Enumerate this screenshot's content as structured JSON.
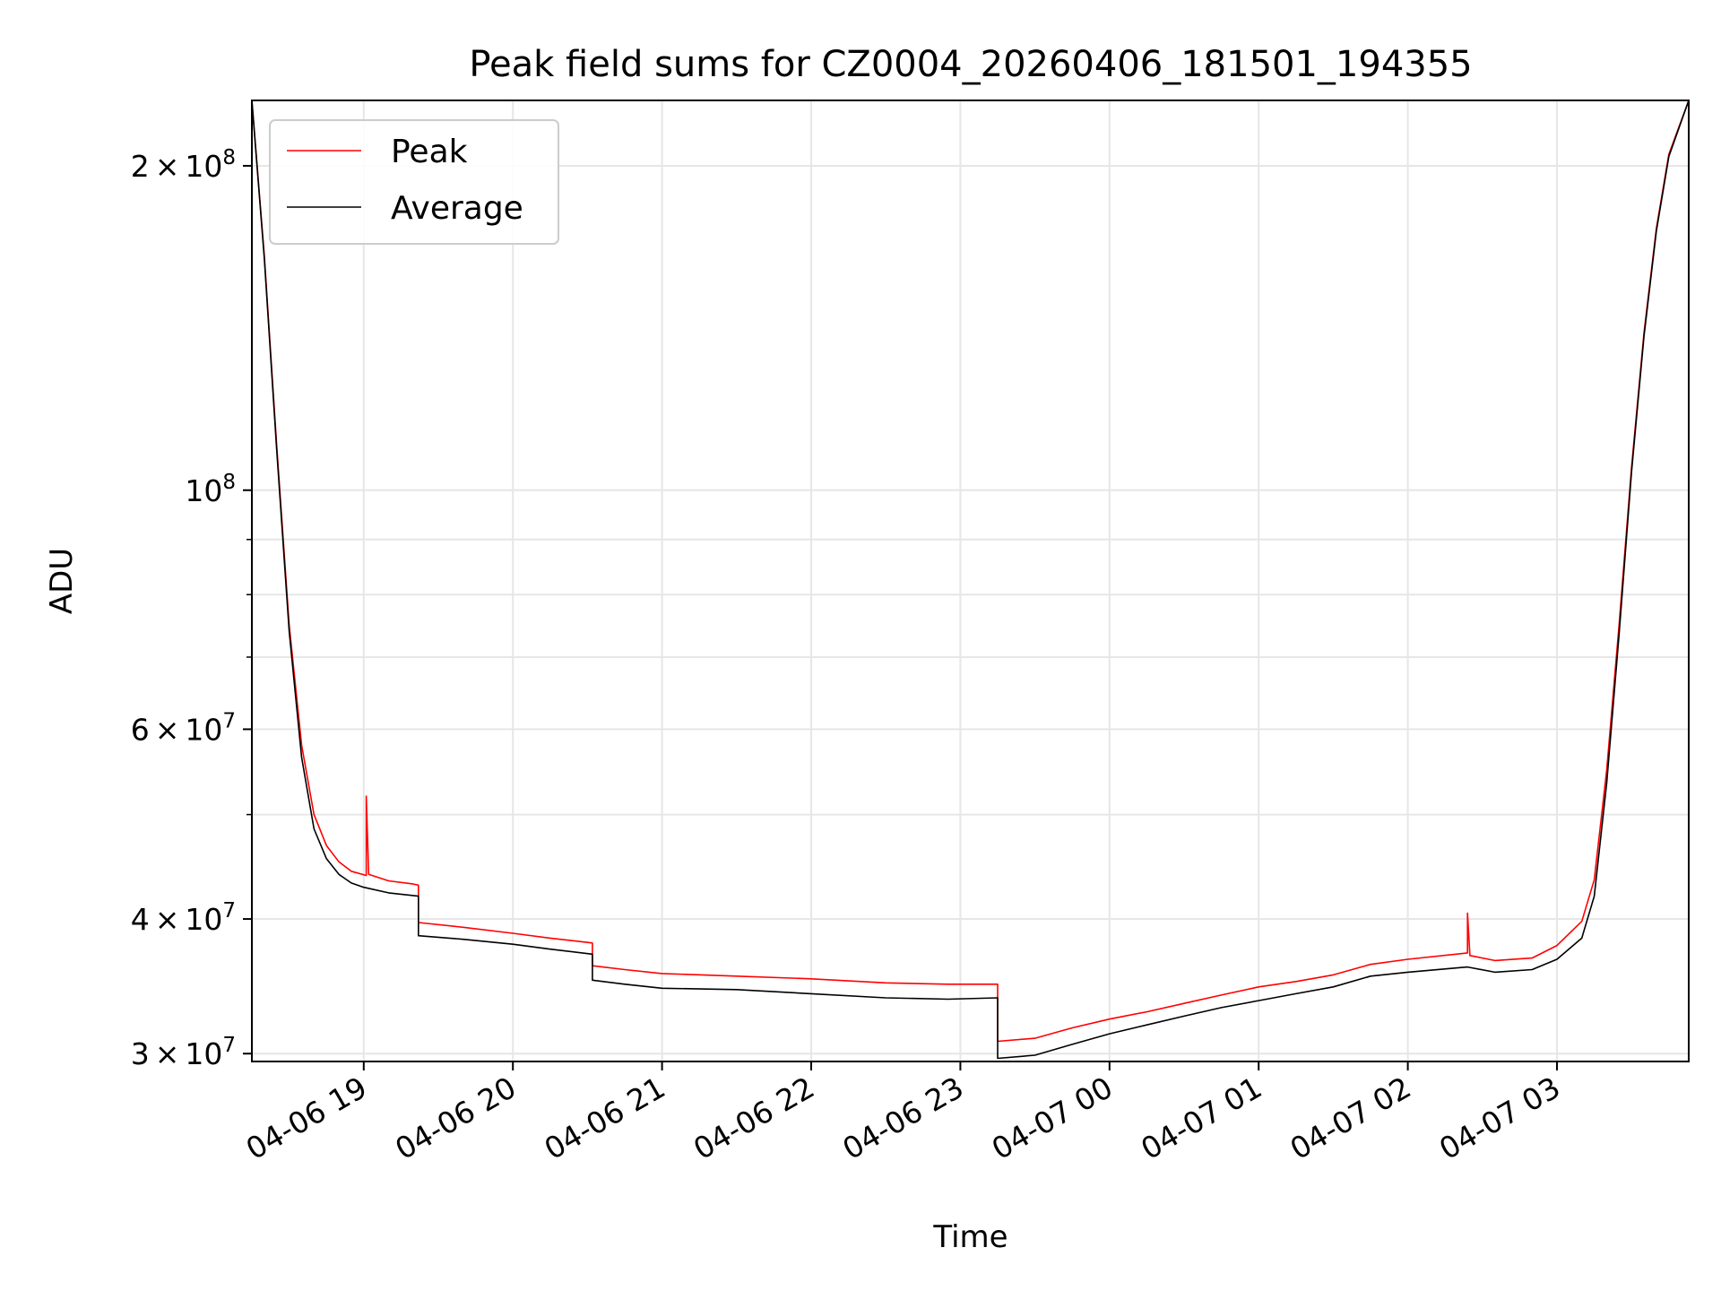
{
  "chart_data": {
    "type": "line",
    "title": "Peak field sums for CZ0004_20260406_181501_194355",
    "xlabel": "Time",
    "ylabel": "ADU",
    "yscale": "log",
    "ylim": [
      29500000,
      230000000
    ],
    "xlim": [
      "2026-04-06 18:15",
      "2026-04-07 03:53"
    ],
    "grid": true,
    "legend_position": "top-left",
    "x_ticks": [
      {
        "t": "2026-04-06 19:00",
        "label": "04-06 19"
      },
      {
        "t": "2026-04-06 20:00",
        "label": "04-06 20"
      },
      {
        "t": "2026-04-06 21:00",
        "label": "04-06 21"
      },
      {
        "t": "2026-04-06 22:00",
        "label": "04-06 22"
      },
      {
        "t": "2026-04-06 23:00",
        "label": "04-06 23"
      },
      {
        "t": "2026-04-07 00:00",
        "label": "04-07 00"
      },
      {
        "t": "2026-04-07 01:00",
        "label": "04-07 01"
      },
      {
        "t": "2026-04-07 02:00",
        "label": "04-07 02"
      },
      {
        "t": "2026-04-07 03:00",
        "label": "04-07 03"
      }
    ],
    "y_ticks": [
      {
        "v": 30000000,
        "mant": "3",
        "exp": "7"
      },
      {
        "v": 40000000,
        "mant": "4",
        "exp": "7"
      },
      {
        "v": 60000000,
        "mant": "6",
        "exp": "7"
      },
      {
        "v": 100000000,
        "mant": "",
        "exp": "8"
      },
      {
        "v": 200000000,
        "mant": "2",
        "exp": "8"
      }
    ],
    "y_minor": [
      50000000,
      70000000,
      80000000,
      90000000
    ],
    "series": [
      {
        "name": "Peak",
        "color": "#ff0000",
        "points": [
          [
            "2026-04-06 18:15",
            230000000
          ],
          [
            "2026-04-06 18:20",
            165000000
          ],
          [
            "2026-04-06 18:25",
            110000000
          ],
          [
            "2026-04-06 18:30",
            75000000
          ],
          [
            "2026-04-06 18:35",
            58000000
          ],
          [
            "2026-04-06 18:40",
            50000000
          ],
          [
            "2026-04-06 18:45",
            46800000
          ],
          [
            "2026-04-06 18:50",
            45200000
          ],
          [
            "2026-04-06 18:55",
            44300000
          ],
          [
            "2026-04-06 19:01",
            43900000
          ],
          [
            "2026-04-06 19:01",
            52000000
          ],
          [
            "2026-04-06 19:02",
            44000000
          ],
          [
            "2026-04-06 19:10",
            43400000
          ],
          [
            "2026-04-06 19:20",
            43100000
          ],
          [
            "2026-04-06 19:22",
            43000000
          ],
          [
            "2026-04-06 19:22",
            39700000
          ],
          [
            "2026-04-06 19:40",
            39300000
          ],
          [
            "2026-04-06 20:00",
            38800000
          ],
          [
            "2026-04-06 20:15",
            38400000
          ],
          [
            "2026-04-06 20:32",
            38000000
          ],
          [
            "2026-04-06 20:32",
            36200000
          ],
          [
            "2026-04-06 20:45",
            35900000
          ],
          [
            "2026-04-06 21:00",
            35600000
          ],
          [
            "2026-04-06 21:30",
            35400000
          ],
          [
            "2026-04-06 22:00",
            35200000
          ],
          [
            "2026-04-06 22:30",
            34900000
          ],
          [
            "2026-04-06 22:55",
            34800000
          ],
          [
            "2026-04-06 23:15",
            34800000
          ],
          [
            "2026-04-06 23:15",
            30800000
          ],
          [
            "2026-04-06 23:30",
            31000000
          ],
          [
            "2026-04-06 23:45",
            31700000
          ],
          [
            "2026-04-07 00:00",
            32300000
          ],
          [
            "2026-04-07 00:15",
            32800000
          ],
          [
            "2026-04-07 00:30",
            33400000
          ],
          [
            "2026-04-07 00:45",
            34000000
          ],
          [
            "2026-04-07 01:00",
            34600000
          ],
          [
            "2026-04-07 01:15",
            35000000
          ],
          [
            "2026-04-07 01:30",
            35500000
          ],
          [
            "2026-04-07 01:45",
            36300000
          ],
          [
            "2026-04-07 02:00",
            36700000
          ],
          [
            "2026-04-07 02:24",
            37200000
          ],
          [
            "2026-04-07 02:24",
            40500000
          ],
          [
            "2026-04-07 02:25",
            37000000
          ],
          [
            "2026-04-07 02:35",
            36600000
          ],
          [
            "2026-04-07 02:50",
            36800000
          ],
          [
            "2026-04-07 03:00",
            37800000
          ],
          [
            "2026-04-07 03:10",
            39800000
          ],
          [
            "2026-04-07 03:15",
            43500000
          ],
          [
            "2026-04-07 03:20",
            55000000
          ],
          [
            "2026-04-07 03:25",
            75000000
          ],
          [
            "2026-04-07 03:30",
            105000000
          ],
          [
            "2026-04-07 03:35",
            140000000
          ],
          [
            "2026-04-07 03:40",
            175000000
          ],
          [
            "2026-04-07 03:45",
            205000000
          ],
          [
            "2026-04-07 03:53",
            230000000
          ]
        ]
      },
      {
        "name": "Average",
        "color": "#000000",
        "points": [
          [
            "2026-04-06 18:15",
            230000000
          ],
          [
            "2026-04-06 18:20",
            164000000
          ],
          [
            "2026-04-06 18:25",
            109000000
          ],
          [
            "2026-04-06 18:30",
            74000000
          ],
          [
            "2026-04-06 18:35",
            56500000
          ],
          [
            "2026-04-06 18:40",
            48500000
          ],
          [
            "2026-04-06 18:45",
            45500000
          ],
          [
            "2026-04-06 18:50",
            44000000
          ],
          [
            "2026-04-06 18:55",
            43200000
          ],
          [
            "2026-04-06 19:00",
            42800000
          ],
          [
            "2026-04-06 19:10",
            42300000
          ],
          [
            "2026-04-06 19:22",
            42000000
          ],
          [
            "2026-04-06 19:22",
            38600000
          ],
          [
            "2026-04-06 19:40",
            38300000
          ],
          [
            "2026-04-06 20:00",
            37900000
          ],
          [
            "2026-04-06 20:15",
            37500000
          ],
          [
            "2026-04-06 20:32",
            37100000
          ],
          [
            "2026-04-06 20:32",
            35100000
          ],
          [
            "2026-04-06 20:45",
            34800000
          ],
          [
            "2026-04-06 21:00",
            34500000
          ],
          [
            "2026-04-06 21:30",
            34400000
          ],
          [
            "2026-04-06 22:00",
            34100000
          ],
          [
            "2026-04-06 22:30",
            33800000
          ],
          [
            "2026-04-06 22:55",
            33700000
          ],
          [
            "2026-04-06 23:15",
            33800000
          ],
          [
            "2026-04-06 23:15",
            29700000
          ],
          [
            "2026-04-06 23:30",
            29900000
          ],
          [
            "2026-04-06 23:45",
            30600000
          ],
          [
            "2026-04-07 00:00",
            31300000
          ],
          [
            "2026-04-07 00:15",
            31900000
          ],
          [
            "2026-04-07 00:30",
            32500000
          ],
          [
            "2026-04-07 00:45",
            33100000
          ],
          [
            "2026-04-07 01:00",
            33600000
          ],
          [
            "2026-04-07 01:15",
            34100000
          ],
          [
            "2026-04-07 01:30",
            34600000
          ],
          [
            "2026-04-07 01:45",
            35400000
          ],
          [
            "2026-04-07 02:00",
            35700000
          ],
          [
            "2026-04-07 02:24",
            36100000
          ],
          [
            "2026-04-07 02:35",
            35700000
          ],
          [
            "2026-04-07 02:50",
            35900000
          ],
          [
            "2026-04-07 03:00",
            36700000
          ],
          [
            "2026-04-07 03:10",
            38400000
          ],
          [
            "2026-04-07 03:15",
            42000000
          ],
          [
            "2026-04-07 03:20",
            53500000
          ],
          [
            "2026-04-07 03:25",
            73500000
          ],
          [
            "2026-04-07 03:30",
            104000000
          ],
          [
            "2026-04-07 03:35",
            139000000
          ],
          [
            "2026-04-07 03:40",
            174000000
          ],
          [
            "2026-04-07 03:45",
            204000000
          ],
          [
            "2026-04-07 03:53",
            230000000
          ]
        ]
      }
    ]
  }
}
